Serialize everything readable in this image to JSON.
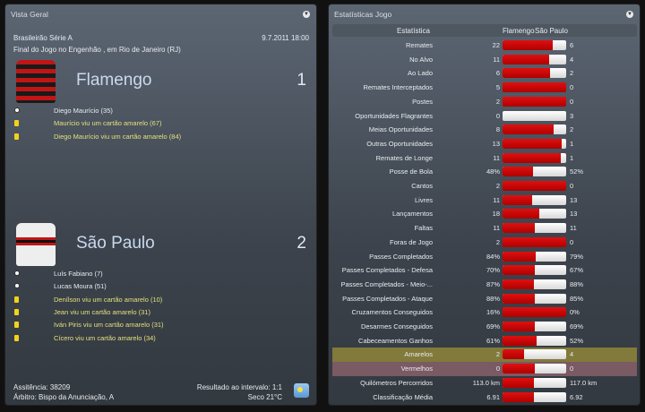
{
  "overview": {
    "title": "Vista Geral",
    "competition": "Brasileirão Série A",
    "datetime": "9.7.2011 18:00",
    "venue": "Final do Jogo no Engenhão , em Rio de Janeiro (RJ)",
    "home": {
      "name": "Flamengo",
      "score": "1",
      "events": [
        {
          "type": "goal",
          "text": "Diego Maurício (35)"
        },
        {
          "type": "yellow",
          "text": "Maurício viu um cartão amarelo (67)"
        },
        {
          "type": "yellow",
          "text": "Diego Maurício viu um cartão amarelo (84)"
        }
      ]
    },
    "away": {
      "name": "São Paulo",
      "score": "2",
      "events": [
        {
          "type": "goal",
          "text": "Luís Fabiano (7)"
        },
        {
          "type": "goal",
          "text": "Lucas Moura (51)"
        },
        {
          "type": "yellow",
          "text": "Denílson viu um cartão amarelo (10)"
        },
        {
          "type": "yellow",
          "text": "Jean viu um cartão amarelo (31)"
        },
        {
          "type": "yellow",
          "text": "Iván Piris viu um cartão amarelo (31)"
        },
        {
          "type": "yellow",
          "text": "Cícero viu um cartão amarelo (34)"
        }
      ]
    },
    "attendance": "Assitência: 38209",
    "referee": "Árbitro: Bispo da Anunciação, A",
    "halftime": "Resultado ao intervalo: 1:1",
    "weather": "Seco 21°C"
  },
  "stats": {
    "title": "Estatísticas Jogo",
    "col_stat": "Estatística",
    "col_home": "Flamengo",
    "col_away": "São Paulo",
    "rows": [
      {
        "label": "Remates",
        "home": "22",
        "away": "6",
        "h": 22,
        "a": 6
      },
      {
        "label": "No Alvo",
        "home": "11",
        "away": "4",
        "h": 11,
        "a": 4
      },
      {
        "label": "Ao Lado",
        "home": "6",
        "away": "2",
        "h": 6,
        "a": 2
      },
      {
        "label": "Remates Interceptados",
        "home": "5",
        "away": "0",
        "h": 5,
        "a": 0
      },
      {
        "label": "Postes",
        "home": "2",
        "away": "0",
        "h": 2,
        "a": 0
      },
      {
        "label": "Oportunidades Flagrantes",
        "home": "0",
        "away": "3",
        "h": 0,
        "a": 3
      },
      {
        "label": "Meias Oportunidades",
        "home": "8",
        "away": "2",
        "h": 8,
        "a": 2
      },
      {
        "label": "Outras Oportunidades",
        "home": "13",
        "away": "1",
        "h": 13,
        "a": 1
      },
      {
        "label": "Remates de Longe",
        "home": "11",
        "away": "1",
        "h": 11,
        "a": 1
      },
      {
        "label": "Posse de Bola",
        "home": "48%",
        "away": "52%",
        "h": 48,
        "a": 52
      },
      {
        "label": "Cantos",
        "home": "2",
        "away": "0",
        "h": 2,
        "a": 0
      },
      {
        "label": "Livres",
        "home": "11",
        "away": "13",
        "h": 11,
        "a": 13
      },
      {
        "label": "Lançamentos",
        "home": "18",
        "away": "13",
        "h": 18,
        "a": 13
      },
      {
        "label": "Faltas",
        "home": "11",
        "away": "11",
        "h": 11,
        "a": 11
      },
      {
        "label": "Foras de Jogo",
        "home": "2",
        "away": "0",
        "h": 2,
        "a": 0
      },
      {
        "label": "Passes Completados",
        "home": "84%",
        "away": "79%",
        "h": 84,
        "a": 79
      },
      {
        "label": "Passes Completados - Defesa",
        "home": "70%",
        "away": "67%",
        "h": 70,
        "a": 67
      },
      {
        "label": "Passes Completados - Meio-...",
        "home": "87%",
        "away": "88%",
        "h": 87,
        "a": 88
      },
      {
        "label": "Passes Completados - Ataque",
        "home": "88%",
        "away": "85%",
        "h": 88,
        "a": 85
      },
      {
        "label": "Cruzamentos Conseguidos",
        "home": "16%",
        "away": "0%",
        "h": 16,
        "a": 0
      },
      {
        "label": "Desarmes Conseguidos",
        "home": "69%",
        "away": "69%",
        "h": 69,
        "a": 69
      },
      {
        "label": "Cabeceamentos Ganhos",
        "home": "61%",
        "away": "52%",
        "h": 61,
        "a": 52
      },
      {
        "label": "Amarelos",
        "home": "2",
        "away": "4",
        "h": 2,
        "a": 4,
        "highlight": "yellow"
      },
      {
        "label": "Vermelhos",
        "home": "0",
        "away": "0",
        "h": 0,
        "a": 0,
        "highlight": "red"
      },
      {
        "label": "Quilómetros Percorridos",
        "home": "113.0 km",
        "away": "117.0 km",
        "h": 113,
        "a": 117
      },
      {
        "label": "Classificação Média",
        "home": "6.91",
        "away": "6.92",
        "h": 6.91,
        "a": 6.92
      }
    ]
  }
}
